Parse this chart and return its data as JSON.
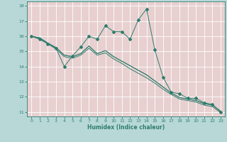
{
  "title": "",
  "xlabel": "Humidex (Indice chaleur)",
  "xlim": [
    -0.5,
    23.5
  ],
  "ylim": [
    10.7,
    18.3
  ],
  "xticks": [
    0,
    1,
    2,
    3,
    4,
    5,
    6,
    7,
    8,
    9,
    10,
    11,
    12,
    13,
    14,
    15,
    16,
    17,
    18,
    19,
    20,
    21,
    22,
    23
  ],
  "yticks": [
    11,
    12,
    13,
    14,
    15,
    16,
    17,
    18
  ],
  "background_color": "#b8d8d8",
  "plot_bg_color": "#e8d0d0",
  "grid_color": "#ffffff",
  "line_color": "#2e7d6e",
  "series": [
    [
      16.0,
      15.8,
      15.5,
      15.2,
      14.0,
      14.7,
      15.3,
      16.0,
      15.8,
      16.7,
      16.3,
      16.3,
      15.8,
      17.1,
      17.8,
      15.1,
      13.3,
      12.3,
      12.2,
      11.9,
      11.9,
      11.6,
      11.5,
      11.0
    ],
    [
      16.0,
      15.85,
      15.5,
      15.15,
      14.65,
      14.55,
      14.75,
      15.2,
      14.75,
      14.9,
      14.5,
      14.2,
      13.85,
      13.55,
      13.25,
      12.9,
      12.5,
      12.15,
      11.85,
      11.75,
      11.65,
      11.45,
      11.35,
      10.95
    ],
    [
      16.0,
      15.9,
      15.55,
      15.25,
      14.75,
      14.65,
      14.85,
      15.35,
      14.85,
      15.05,
      14.65,
      14.35,
      14.05,
      13.75,
      13.45,
      13.05,
      12.65,
      12.25,
      11.95,
      11.85,
      11.75,
      11.55,
      11.45,
      11.05
    ],
    [
      16.0,
      15.9,
      15.55,
      15.25,
      14.75,
      14.65,
      14.85,
      15.35,
      14.85,
      15.05,
      14.65,
      14.35,
      14.05,
      13.75,
      13.45,
      13.05,
      12.65,
      12.25,
      11.95,
      11.85,
      11.75,
      11.55,
      11.45,
      11.05
    ]
  ]
}
